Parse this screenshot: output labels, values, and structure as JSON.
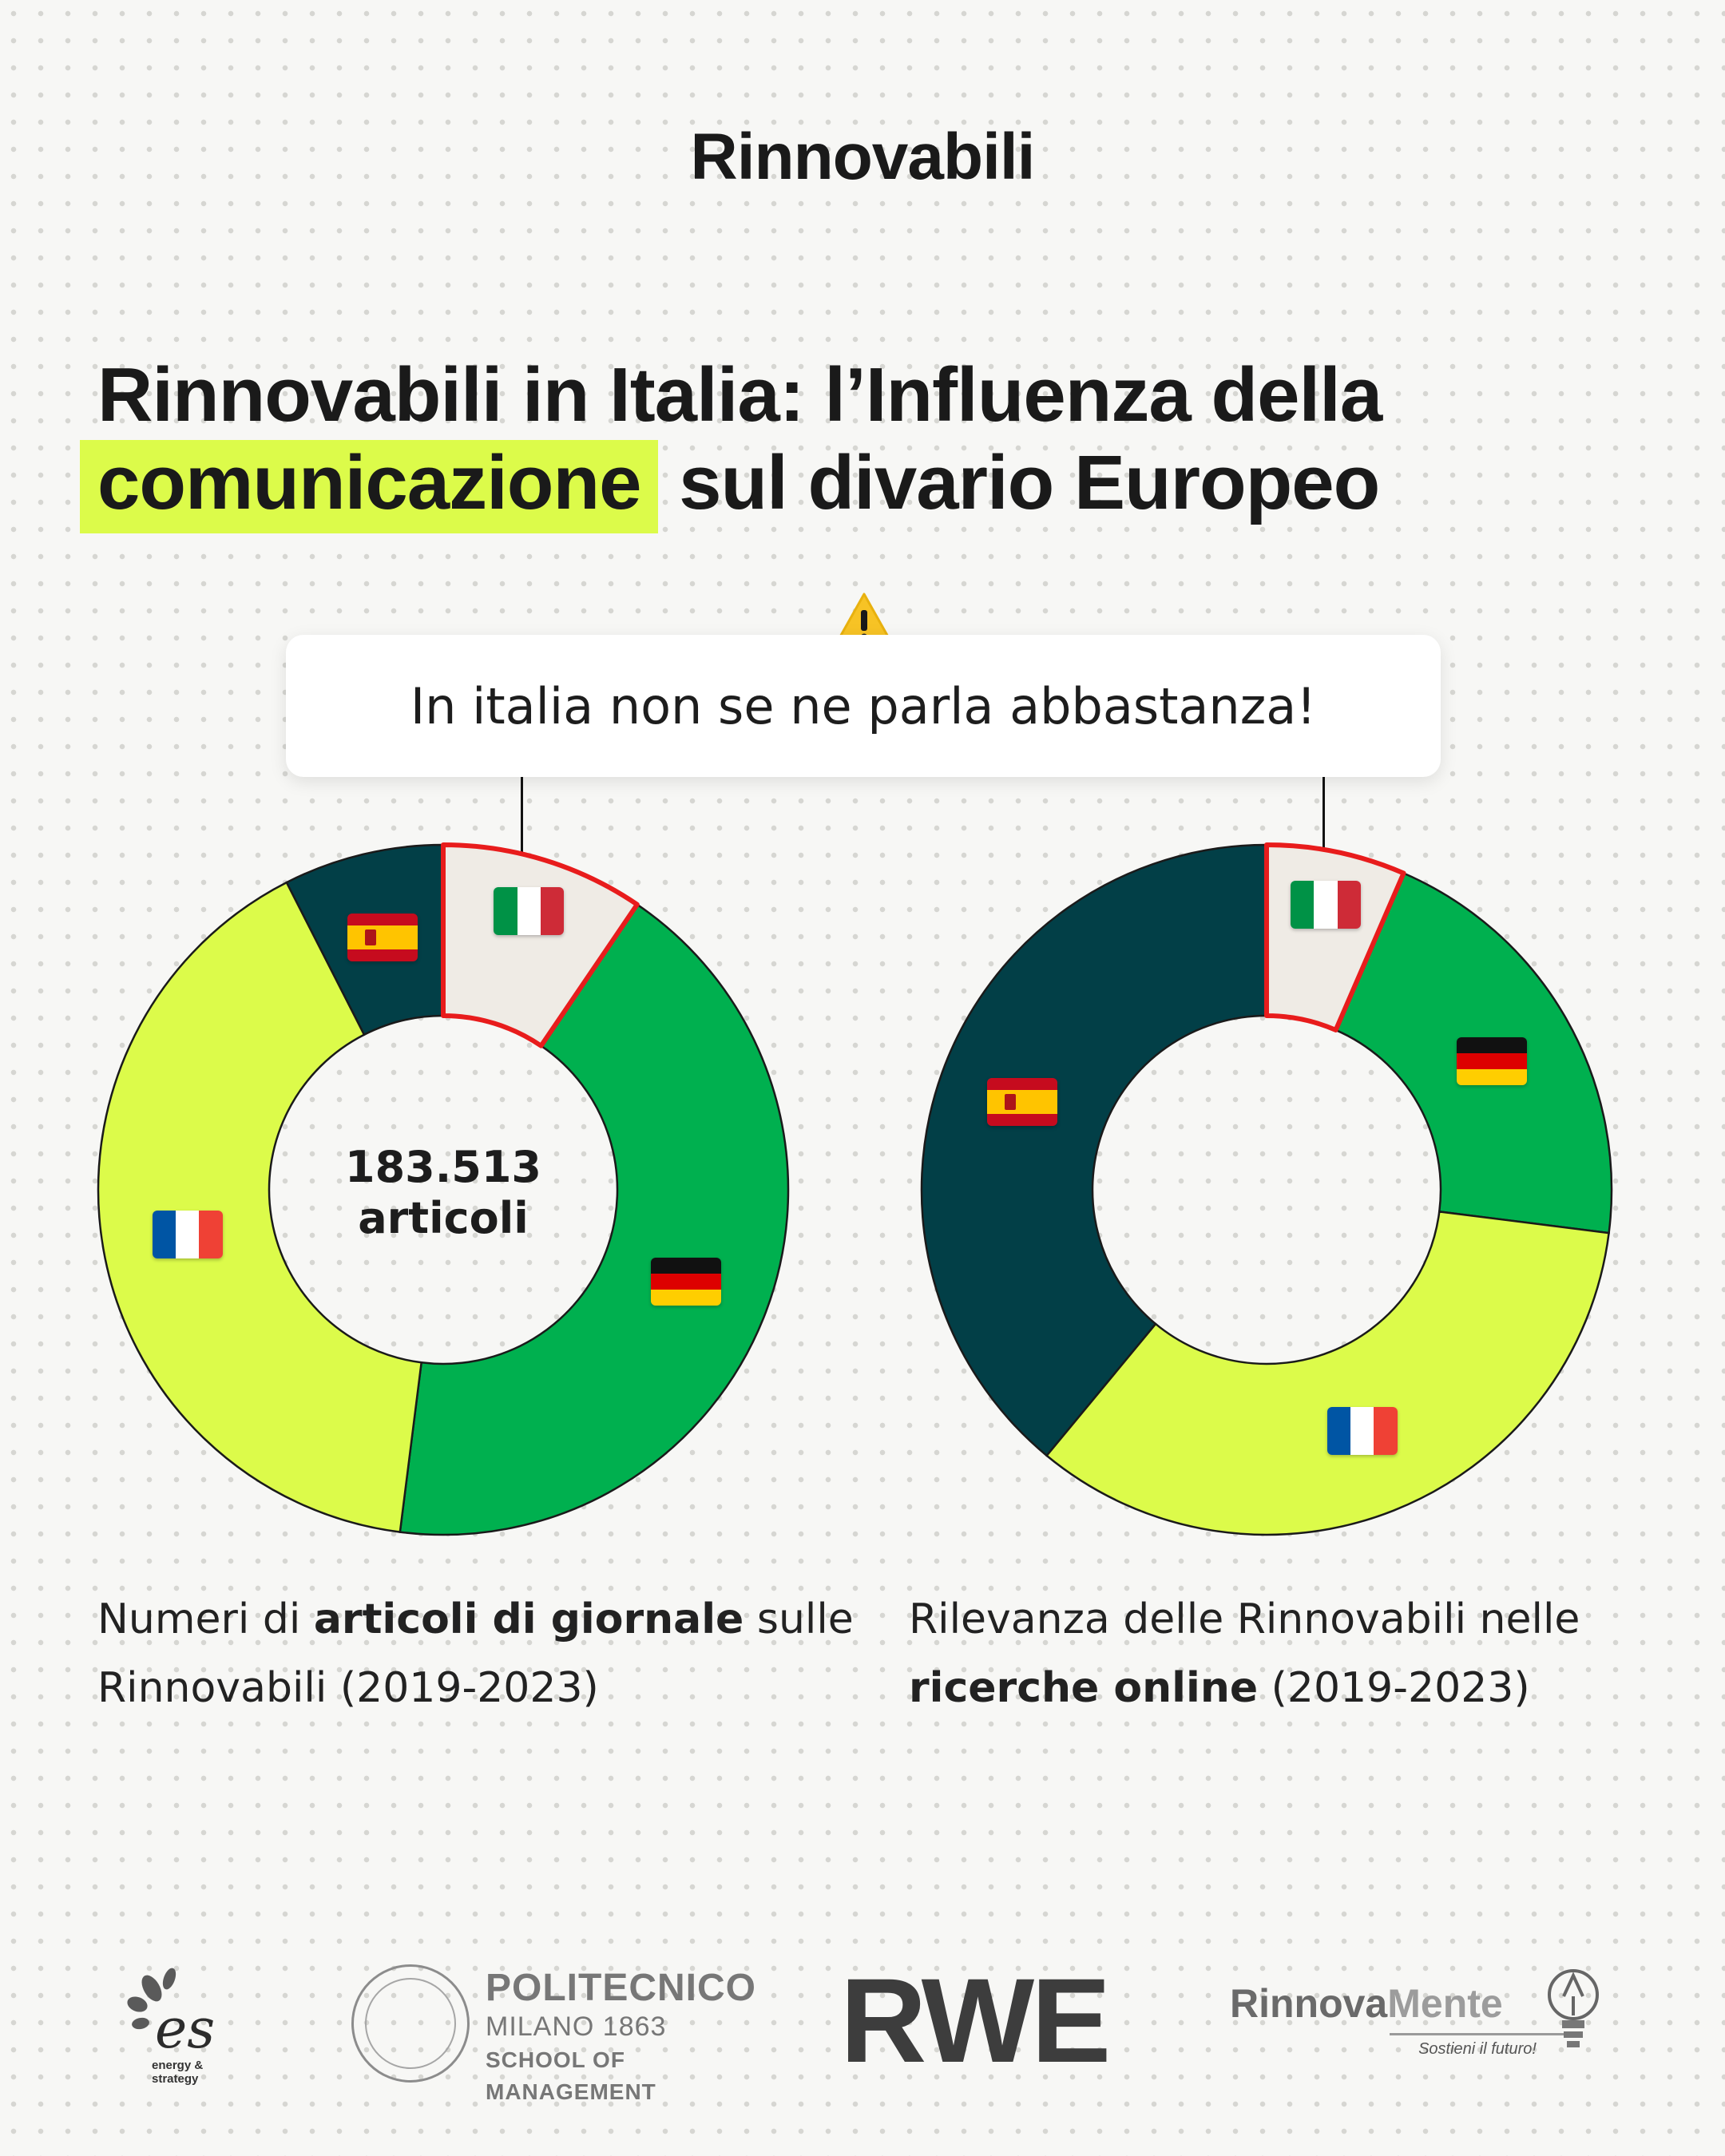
{
  "brand": {
    "logo_text": "Rinnovabili"
  },
  "title": {
    "line1": "Rinnovabili in Italia: l’Influenza della",
    "highlight": "comunicazione",
    "line2_rest": " sul divario Europeo"
  },
  "callout": {
    "icon": "warning-icon",
    "text": "In italia non se ne parla abbastanza!"
  },
  "colors": {
    "accent": "#dcfb4a",
    "italy": "#efebe5",
    "germany": "#00b04f",
    "france": "#dcfb4a",
    "spain": "#023f47",
    "italy_outline": "#e81c1c"
  },
  "chart_data": [
    {
      "type": "pie",
      "variant": "donut",
      "center_value": "183.513",
      "center_unit": "articoli",
      "caption_prefix": "Numeri di ",
      "caption_bold": "articoli di giornale",
      "caption_suffix": " sulle Rinnovabili (2019-2023)",
      "slices": [
        {
          "label": "Italia",
          "flag": "italy-flag-icon",
          "value": 9.5,
          "color": "#efebe5"
        },
        {
          "label": "Germania",
          "flag": "germany-flag-icon",
          "value": 42.5,
          "color": "#00b04f"
        },
        {
          "label": "Francia",
          "flag": "france-flag-icon",
          "value": 40.5,
          "color": "#dcfb4a"
        },
        {
          "label": "Spagna",
          "flag": "spain-flag-icon",
          "value": 7.5,
          "color": "#023f47"
        }
      ]
    },
    {
      "type": "pie",
      "variant": "donut",
      "caption_prefix": "Rilevanza delle Rinnovabili nelle ",
      "caption_bold": "ricerche online",
      "caption_suffix": " (2019-2023)",
      "slices": [
        {
          "label": "Italia",
          "flag": "italy-flag-icon",
          "value": 6.5,
          "color": "#efebe5"
        },
        {
          "label": "Germania",
          "flag": "germany-flag-icon",
          "value": 20.5,
          "color": "#00b04f"
        },
        {
          "label": "Francia",
          "flag": "france-flag-icon",
          "value": 34,
          "color": "#dcfb4a"
        },
        {
          "label": "Spagna",
          "flag": "spain-flag-icon",
          "value": 39,
          "color": "#023f47"
        }
      ]
    }
  ],
  "logos": {
    "es": "es",
    "es_sub": "energy & strategy",
    "poli_1": "POLITECNICO",
    "poli_2": "MILANO 1863",
    "poli_3": "SCHOOL OF MANAGEMENT",
    "rwe": "RWE",
    "rm_a": "Rinnova",
    "rm_b": "Mente",
    "rm_sub": "Sostieni il futuro!"
  }
}
